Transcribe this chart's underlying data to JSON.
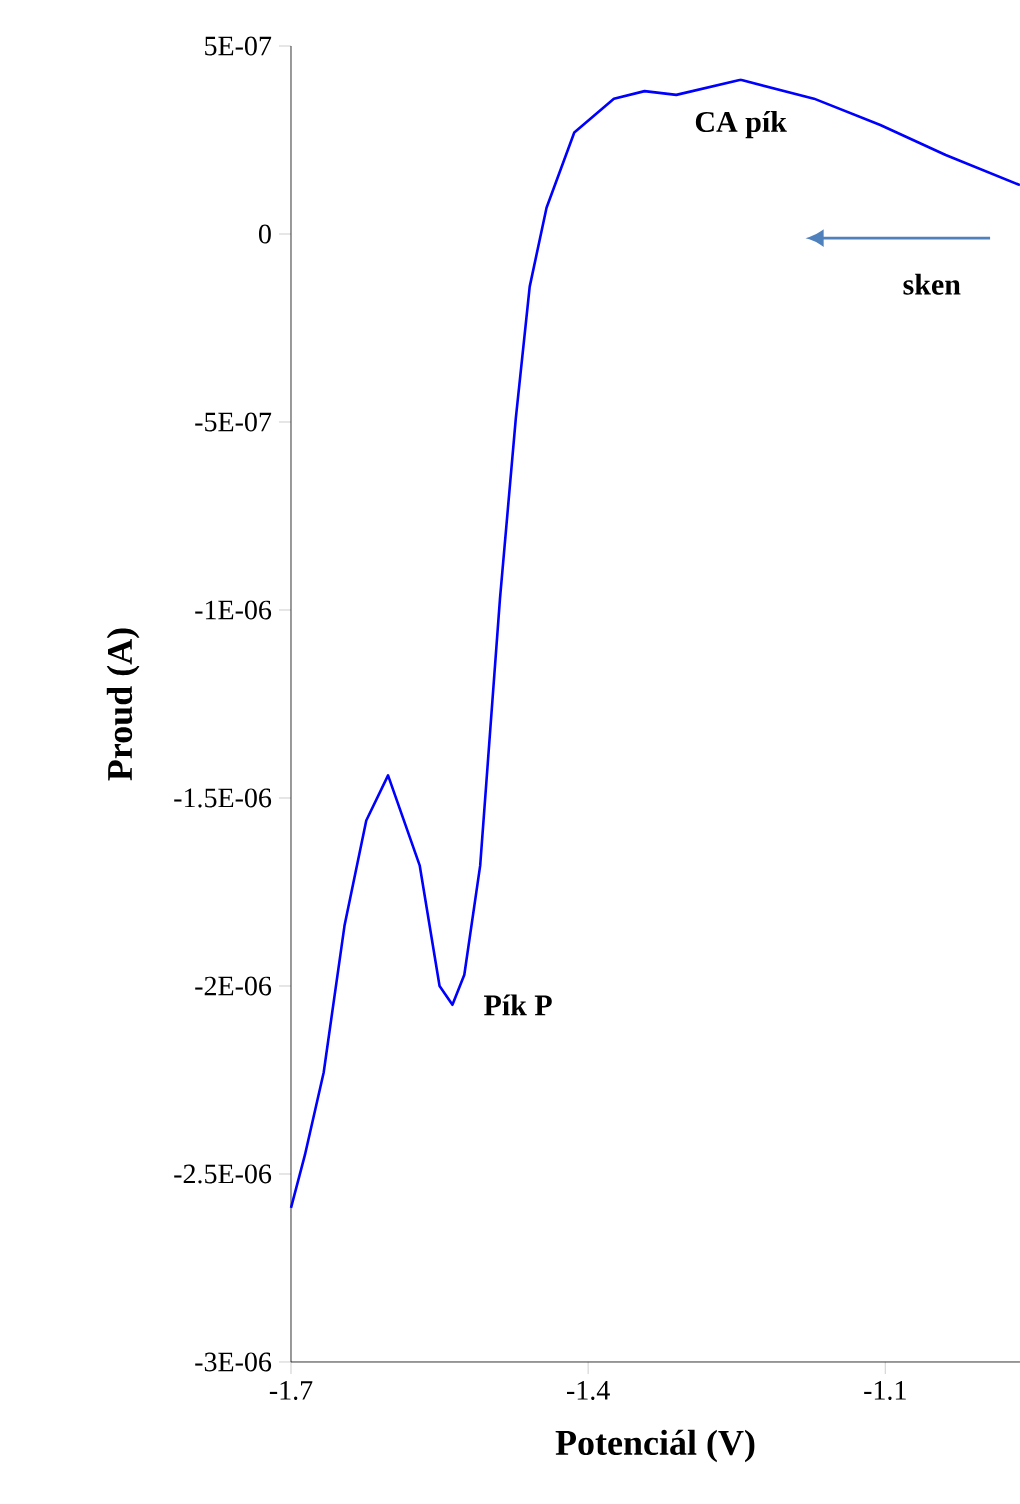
{
  "chart_data": {
    "type": "line",
    "xlabel": "Potenciál (V)",
    "ylabel": "Proud (A)",
    "xlim": [
      -1.7,
      -0.964
    ],
    "xticks": [
      -1.7,
      -1.4,
      -1.1
    ],
    "ylim": [
      -3e-06,
      5e-07
    ],
    "yticks": [
      {
        "value": -3e-06,
        "label": "-3E-06"
      },
      {
        "value": -2.5e-06,
        "label": "-2.5E-06"
      },
      {
        "value": -2e-06,
        "label": "-2E-06"
      },
      {
        "value": -1.5e-06,
        "label": "-1.5E-06"
      },
      {
        "value": -1e-06,
        "label": "-1E-06"
      },
      {
        "value": -5e-07,
        "label": "-5E-07"
      },
      {
        "value": 0,
        "label": "0"
      },
      {
        "value": 5e-07,
        "label": "5E-07"
      }
    ],
    "grid": false,
    "marker": "none",
    "line_style": "solid",
    "series": [
      {
        "color": "#0000ff",
        "x": [
          -1.7,
          -1.686,
          -1.667,
          -1.646,
          -1.624,
          -1.602,
          -1.57,
          -1.55,
          -1.537,
          -1.525,
          -1.509,
          -1.489,
          -1.473,
          -1.459,
          -1.442,
          -1.414,
          -1.374,
          -1.343,
          -1.311,
          -1.246,
          -1.172,
          -1.105,
          -1.039,
          -0.964
        ],
        "values": [
          -2.59e-06,
          -2.45e-06,
          -2.23e-06,
          -1.84e-06,
          -1.56e-06,
          -1.44e-06,
          -1.68e-06,
          -2e-06,
          -2.05e-06,
          -1.97e-06,
          -1.68e-06,
          -9.7e-07,
          -4.9e-07,
          -1.4e-07,
          7e-08,
          2.7e-07,
          3.6e-07,
          3.8e-07,
          3.7e-07,
          4.1e-07,
          3.6e-07,
          2.9e-07,
          2.1e-07,
          1.3e-07
        ]
      }
    ],
    "annotations": [
      {
        "text": "CA pík",
        "x": -1.246,
        "y": 4.1e-07
      },
      {
        "text": "Pík P",
        "x": -1.537,
        "y": -2.05e-06
      },
      "sken"
    ]
  }
}
